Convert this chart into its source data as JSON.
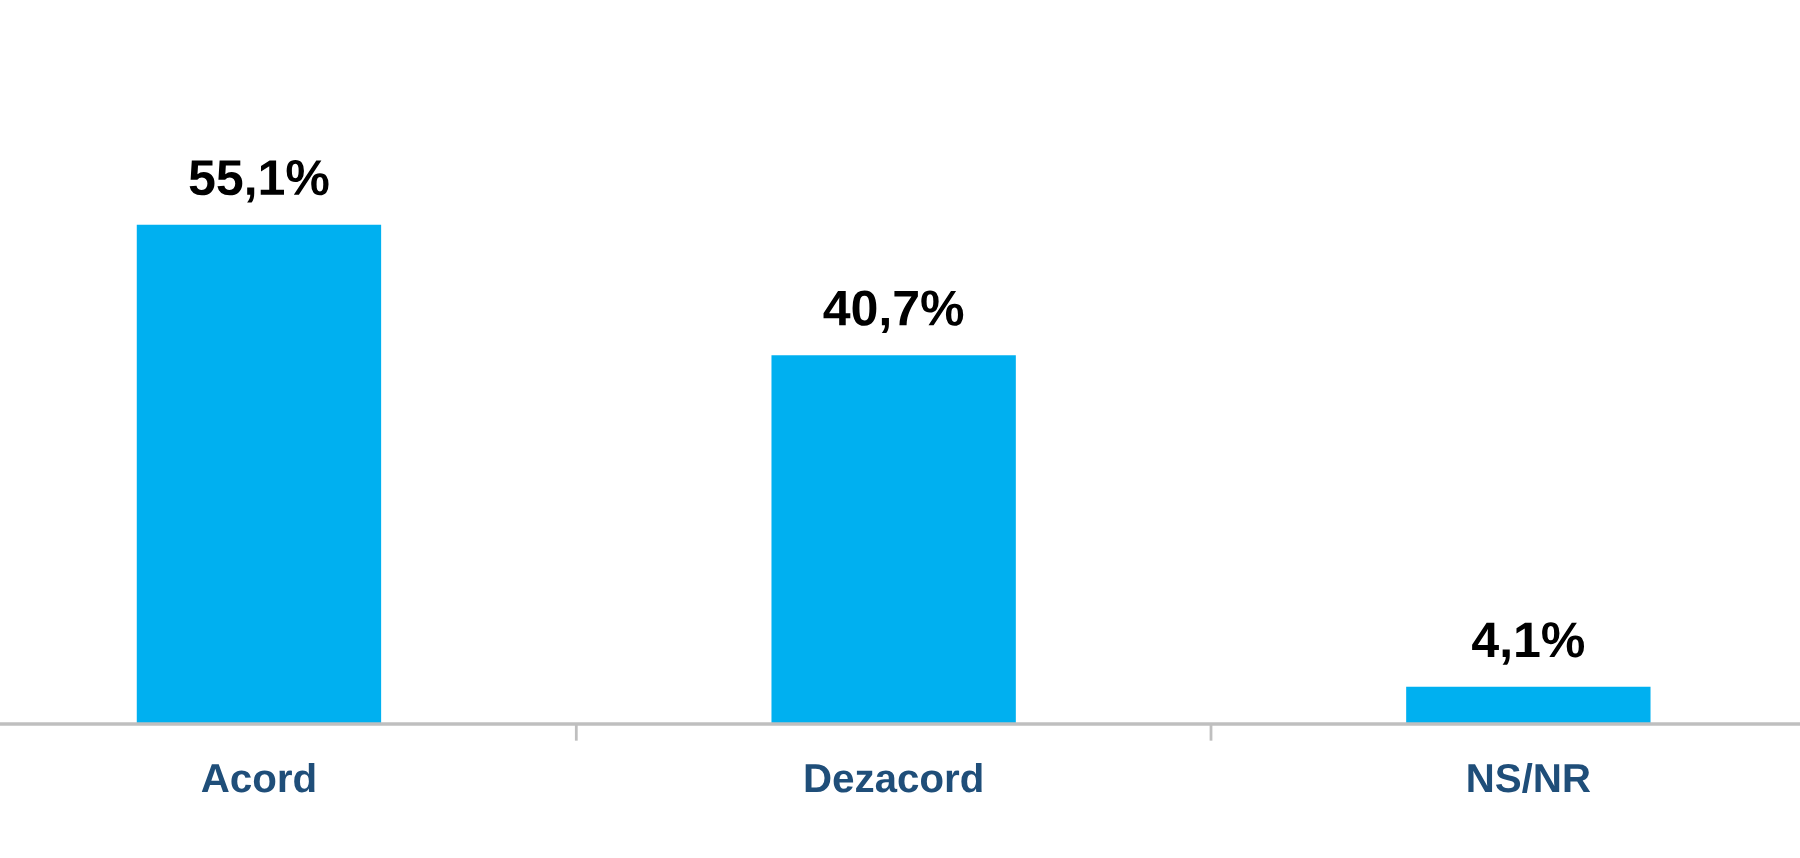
{
  "chart_data": {
    "type": "bar",
    "categories": [
      "Acord",
      "Dezacord",
      "NS/NR"
    ],
    "values": [
      55.1,
      40.7,
      4.1
    ],
    "value_labels": [
      "55,1%",
      "40,7%",
      "4,1%"
    ],
    "color": "#00b0f0",
    "tick_labels": "x"
  }
}
